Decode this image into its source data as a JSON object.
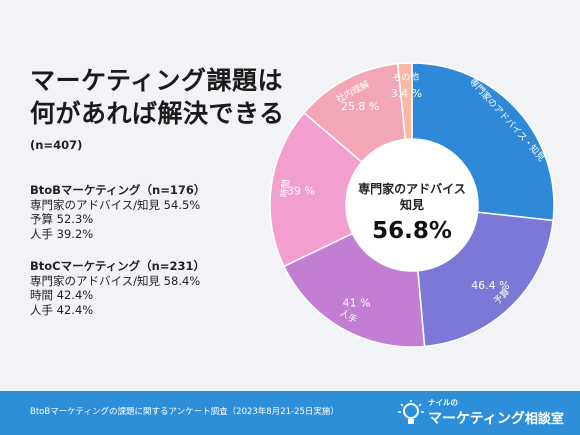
{
  "title_lines": [
    "マーケティング課題は",
    "何があれば解決できる"
  ],
  "sample": "(n=407)",
  "groups": [
    {
      "heading": "BtoBマーケティング（n=176）",
      "lines": [
        "専門家のアドバイス/知見 54.5%",
        "予算 52.3%",
        "人手 39.2%"
      ]
    },
    {
      "heading": "BtoCマーケティング（n=231）",
      "lines": [
        "専門家のアドバイス/知見 58.4%",
        "時間 42.4%",
        "人手 42.4%"
      ]
    }
  ],
  "center": {
    "label_line1": "専門家のアドバイス",
    "label_line2": "知見",
    "value": "56.8%"
  },
  "footer": {
    "source": "BtoBマーケティングの課題に関するアンケート調査（2023年8月21-25日実施）",
    "logo_small": "ナイルの",
    "logo_main": "マーケティング",
    "logo_sub": "相談室",
    "logo_icon": "lightbulb-icon"
  },
  "chart_data": {
    "type": "pie",
    "style": "donut",
    "slices": [
      {
        "label": "専門家のアドバイス・知見",
        "value_label": "",
        "value": 56.8,
        "color": "#2e8ad8"
      },
      {
        "label": "予算",
        "value_label": "46.4 %",
        "value": 46.4,
        "color": "#7b78d6"
      },
      {
        "label": "人手",
        "value_label": "41 %",
        "value": 41,
        "color": "#c17ed3"
      },
      {
        "label": "時間",
        "value_label": "39 %",
        "value": 39,
        "color": "#f29fcd"
      },
      {
        "label": "社内理解",
        "value_label": "25.8 %",
        "value": 25.8,
        "color": "#f2a6b6"
      },
      {
        "label": "その他",
        "value_label": "3.4 %",
        "value": 3.4,
        "color": "#f7b8a4"
      }
    ]
  }
}
